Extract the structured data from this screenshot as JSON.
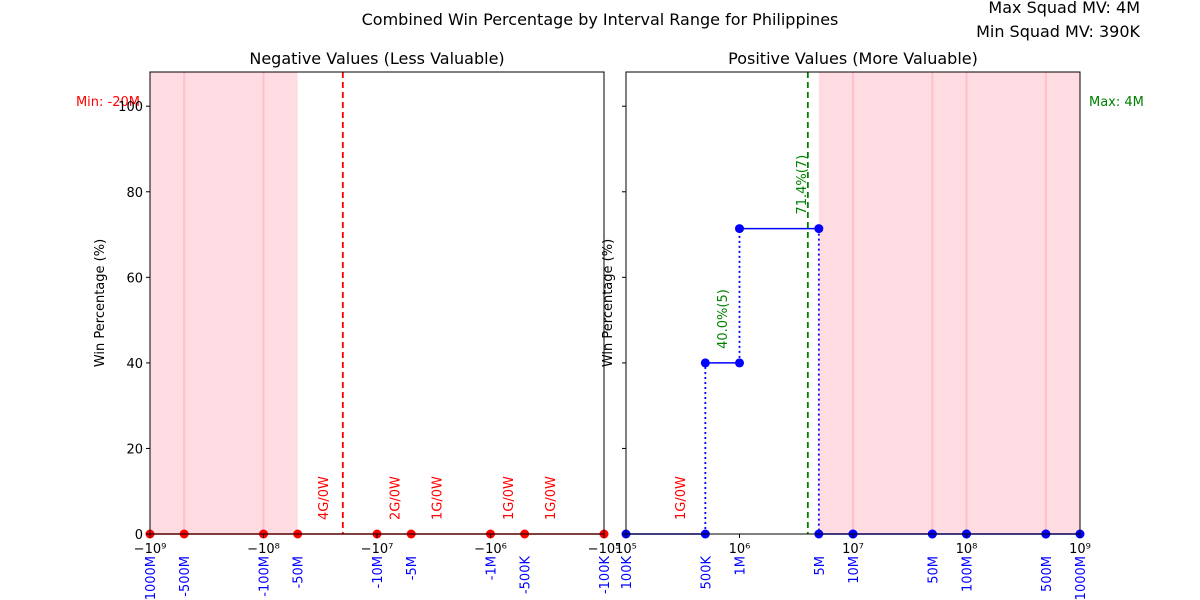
{
  "figure": {
    "suptitle": "Combined Win Percentage by Interval Range for Philippines",
    "max_squad_mv": "Max Squad MV: 4M",
    "min_squad_mv": "Min Squad MV: 390K"
  },
  "colors": {
    "negative": "#ff0000",
    "positive": "#0000ff",
    "positive_annot": "#008000",
    "shade": "#ffc0cb",
    "shade_line": "#ffc0cb"
  },
  "chart_data": [
    {
      "type": "line",
      "title": "Negative Values (Less Valuable)",
      "ylabel": "Win Percentage (%)",
      "xscale": "symlog-negative",
      "xlim": [
        -1000000000,
        -100000
      ],
      "ylim": [
        0,
        108
      ],
      "yticks": [
        0,
        20,
        40,
        60,
        80,
        100
      ],
      "xticks": [
        {
          "value": -1000000000,
          "label": "−10⁹"
        },
        {
          "value": -100000000,
          "label": "−10⁸"
        },
        {
          "value": -10000000,
          "label": "−10⁷"
        },
        {
          "value": -1000000,
          "label": "−10⁶"
        },
        {
          "value": -100000,
          "label": "−10⁵"
        }
      ],
      "interval_labels": [
        {
          "value": -1000000000,
          "label": "-1000M"
        },
        {
          "value": -500000000,
          "label": "-500M"
        },
        {
          "value": -100000000,
          "label": "-100M"
        },
        {
          "value": -50000000,
          "label": "-50M"
        },
        {
          "value": -10000000,
          "label": "-10M"
        },
        {
          "value": -5000000,
          "label": "-5M"
        },
        {
          "value": -1000000,
          "label": "-1M"
        },
        {
          "value": -500000,
          "label": "-500K"
        },
        {
          "value": -100000,
          "label": "-100K"
        }
      ],
      "points": [
        {
          "x": -1000000000,
          "y": 0
        },
        {
          "x": -500000000,
          "y": 0
        },
        {
          "x": -100000000,
          "y": 0
        },
        {
          "x": -50000000,
          "y": 0
        },
        {
          "x": -10000000,
          "y": 0
        },
        {
          "x": -5000000,
          "y": 0
        },
        {
          "x": -1000000,
          "y": 0
        },
        {
          "x": -500000,
          "y": 0
        },
        {
          "x": -100000,
          "y": 0
        }
      ],
      "shaded_range": [
        -1000000000,
        -50000000
      ],
      "vline": {
        "x": -20000000,
        "label": "Min: -20M"
      },
      "annotations": [
        {
          "x": -30000000,
          "text": "4G/0W"
        },
        {
          "x": -7000000,
          "text": "2G/0W"
        },
        {
          "x": -3000000,
          "text": "1G/0W"
        },
        {
          "x": -700000,
          "text": "1G/0W"
        },
        {
          "x": -300000,
          "text": "1G/0W"
        }
      ]
    },
    {
      "type": "line",
      "title": "Positive Values (More Valuable)",
      "ylabel": "Win Percentage (%)",
      "xscale": "log",
      "xlim": [
        100000,
        1000000000
      ],
      "ylim": [
        0,
        108
      ],
      "yticks": [
        0,
        20,
        40,
        60,
        80,
        100
      ],
      "xticks": [
        {
          "value": 100000,
          "label": "10⁵"
        },
        {
          "value": 1000000,
          "label": "10⁶"
        },
        {
          "value": 10000000,
          "label": "10⁷"
        },
        {
          "value": 100000000,
          "label": "10⁸"
        },
        {
          "value": 1000000000,
          "label": "10⁹"
        }
      ],
      "interval_labels": [
        {
          "value": 100000,
          "label": "100K"
        },
        {
          "value": 500000,
          "label": "500K"
        },
        {
          "value": 1000000,
          "label": "1M"
        },
        {
          "value": 5000000,
          "label": "5M"
        },
        {
          "value": 10000000,
          "label": "10M"
        },
        {
          "value": 50000000,
          "label": "50M"
        },
        {
          "value": 100000000,
          "label": "100M"
        },
        {
          "value": 500000000,
          "label": "500M"
        },
        {
          "value": 1000000000,
          "label": "1000M"
        }
      ],
      "steps": [
        {
          "x0": 100000,
          "x1": 500000,
          "y": 0
        },
        {
          "x0": 500000,
          "x1": 1000000,
          "y": 40.0
        },
        {
          "x0": 1000000,
          "x1": 5000000,
          "y": 71.4
        },
        {
          "x0": 5000000,
          "x1": 10000000,
          "y": 0
        },
        {
          "x0": 10000000,
          "x1": 50000000,
          "y": 0
        },
        {
          "x0": 50000000,
          "x1": 100000000,
          "y": 0
        },
        {
          "x0": 100000000,
          "x1": 500000000,
          "y": 0
        },
        {
          "x0": 500000000,
          "x1": 1000000000,
          "y": 0
        }
      ],
      "shaded_range": [
        5000000,
        1000000000
      ],
      "vline": {
        "x": 4000000,
        "label": "Max: 4M"
      },
      "annotations": [
        {
          "x": 300000,
          "text": "1G/0W",
          "color": "negative",
          "y": 0
        },
        {
          "x": 700000,
          "text": "40.0%(5)",
          "color": "positive_annot",
          "y": 40.0
        },
        {
          "x": 3500000,
          "text": "71.4%(7)",
          "color": "positive_annot",
          "y": 71.4
        }
      ]
    }
  ]
}
